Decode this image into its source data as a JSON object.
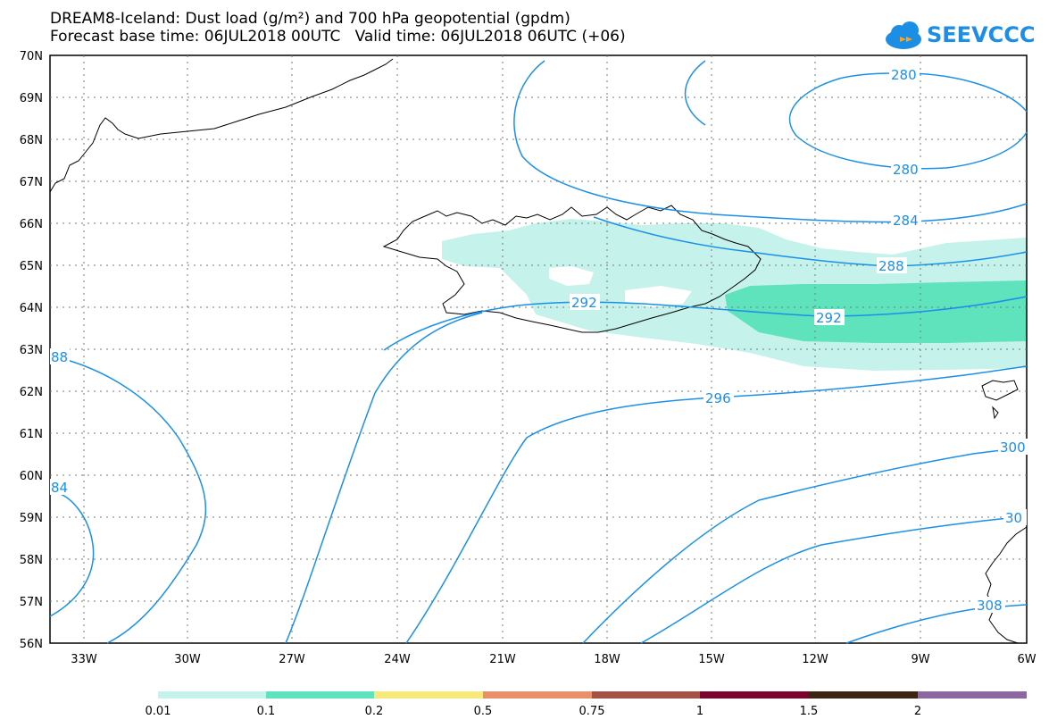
{
  "title": {
    "line1": "DREAM8-Iceland: Dust load (g/m²) and 700 hPa geopotential (gpdm)",
    "line2": "Forecast base time: 06JUL2018 00UTC   Valid time: 06JUL2018 06UTC (+06)"
  },
  "logo": {
    "text": "SEEVCCC"
  },
  "axes": {
    "lat_labels": [
      "70N",
      "69N",
      "68N",
      "67N",
      "66N",
      "65N",
      "64N",
      "63N",
      "62N",
      "61N",
      "60N",
      "59N",
      "58N",
      "57N",
      "56N"
    ],
    "lon_labels": [
      "33W",
      "30W",
      "27W",
      "24W",
      "21W",
      "18W",
      "15W",
      "12W",
      "9W",
      "6W"
    ]
  },
  "contours": {
    "labels": [
      "280",
      "280",
      "284",
      "288",
      "292",
      "292",
      "296",
      "300",
      "30",
      "308",
      "88",
      "84"
    ],
    "color": "#1a90e8"
  },
  "dust": {
    "light_color": "#c5f2ea",
    "dark_color": "#5ee3bc"
  },
  "legend": {
    "ticks": [
      "0.01",
      "0.1",
      "0.2",
      "0.5",
      "0.75",
      "1",
      "1.5",
      "2"
    ],
    "colors": [
      "#c5f2ea",
      "#5ee3bc",
      "#f7e97a",
      "#e8906a",
      "#a45246",
      "#7a0530",
      "#3c2612",
      "#8c68a0"
    ]
  }
}
